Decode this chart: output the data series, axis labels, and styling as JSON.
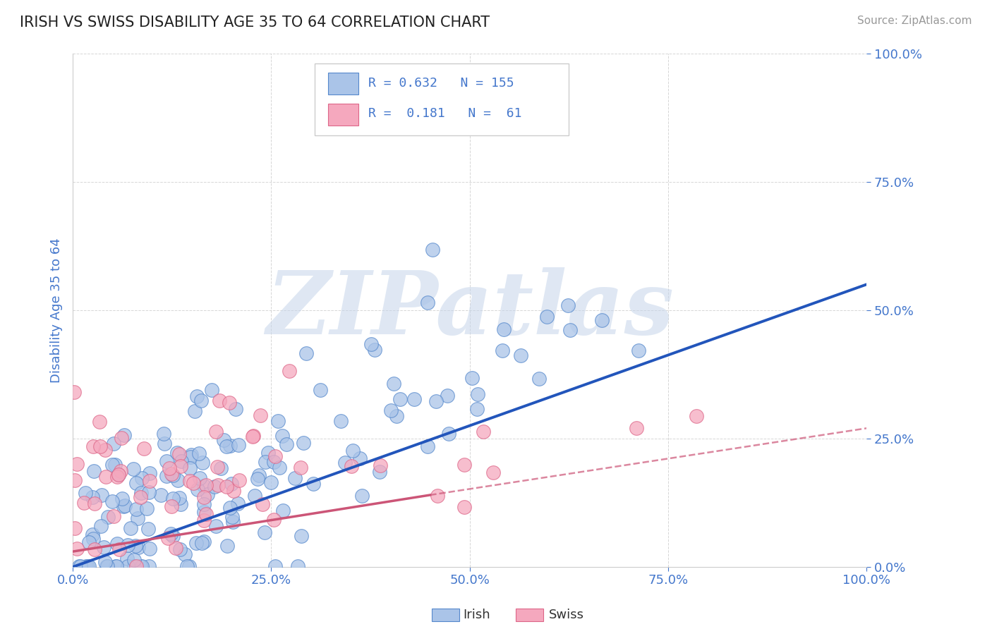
{
  "title": "IRISH VS SWISS DISABILITY AGE 35 TO 64 CORRELATION CHART",
  "source": "Source: ZipAtlas.com",
  "ylabel": "Disability Age 35 to 64",
  "watermark": "ZIPatlas",
  "irish_R": 0.632,
  "irish_N": 155,
  "swiss_R": 0.181,
  "swiss_N": 61,
  "irish_color": "#aac4e8",
  "swiss_color": "#f5a8be",
  "irish_edge_color": "#5588cc",
  "swiss_edge_color": "#dd6688",
  "irish_line_color": "#2255bb",
  "swiss_line_color": "#cc5577",
  "tick_color": "#4477cc",
  "background_color": "#ffffff",
  "grid_color": "#bbbbbb",
  "xlim": [
    0.0,
    1.0
  ],
  "ylim": [
    0.0,
    1.0
  ],
  "xticks": [
    0.0,
    0.25,
    0.5,
    0.75,
    1.0
  ],
  "yticks": [
    0.0,
    0.25,
    0.5,
    0.75,
    1.0
  ],
  "xtick_labels": [
    "0.0%",
    "25.0%",
    "50.0%",
    "75.0%",
    "100.0%"
  ],
  "ytick_labels": [
    "0.0%",
    "25.0%",
    "50.0%",
    "75.0%",
    "100.0%"
  ]
}
